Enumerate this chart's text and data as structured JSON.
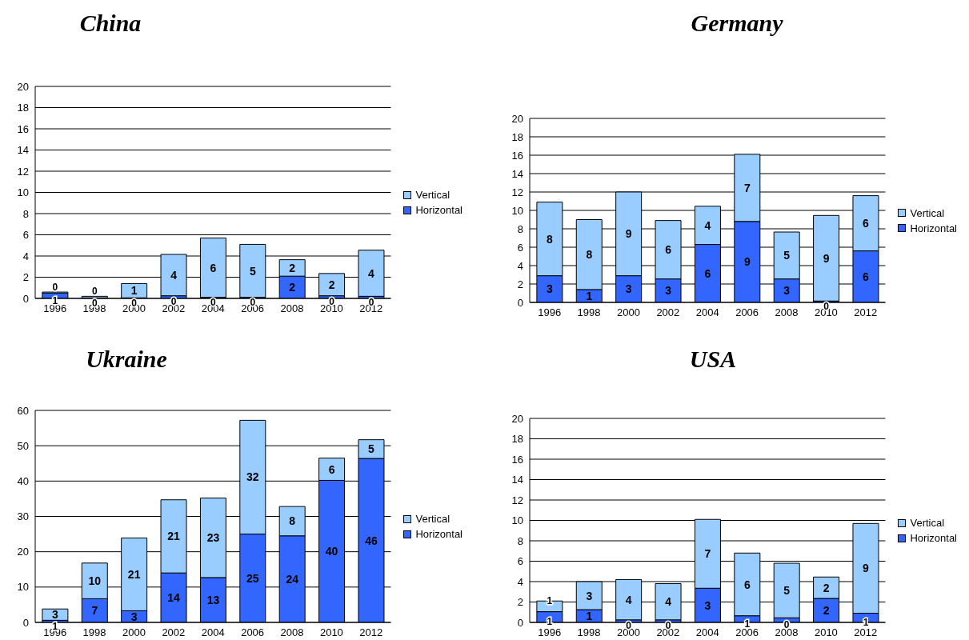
{
  "chart_data": [
    {
      "type": "bar",
      "title": "China",
      "categories": [
        "1996",
        "1998",
        "2000",
        "2002",
        "2004",
        "2006",
        "2008",
        "2010",
        "2012"
      ],
      "stacked": true,
      "ylim": [
        0,
        20
      ],
      "yticks": [
        0,
        2,
        4,
        6,
        8,
        10,
        12,
        14,
        16,
        18,
        20
      ],
      "grid": "y",
      "legend": "right",
      "series": [
        {
          "name": "Horizontal",
          "color": "#3366ff",
          "values": [
            0.5,
            0.05,
            0.05,
            0.25,
            0.1,
            0.1,
            2.1,
            0.25,
            0.2
          ],
          "value_labels": [
            "1",
            "0",
            "0",
            "0",
            "0",
            "0",
            "2",
            "0",
            "0"
          ]
        },
        {
          "name": "Vertical",
          "color": "#99ccff",
          "values": [
            0.1,
            0.15,
            1.35,
            3.9,
            5.6,
            5.0,
            1.55,
            2.1,
            4.35
          ],
          "value_labels": [
            "0",
            "0",
            "1",
            "4",
            "6",
            "5",
            "2",
            "2",
            "4"
          ]
        }
      ]
    },
    {
      "type": "bar",
      "title": "Germany",
      "categories": [
        "1996",
        "1998",
        "2000",
        "2002",
        "2004",
        "2006",
        "2008",
        "2010",
        "2012"
      ],
      "stacked": true,
      "ylim": [
        0,
        20
      ],
      "yticks": [
        0,
        2,
        4,
        6,
        8,
        10,
        12,
        14,
        16,
        18,
        20
      ],
      "grid": "y",
      "legend": "right",
      "series": [
        {
          "name": "Horizontal",
          "color": "#3366ff",
          "values": [
            2.9,
            1.4,
            2.9,
            2.55,
            6.3,
            8.8,
            2.55,
            0.15,
            5.6
          ],
          "value_labels": [
            "3",
            "1",
            "3",
            "3",
            "6",
            "9",
            "3",
            "0",
            "6"
          ]
        },
        {
          "name": "Vertical",
          "color": "#99ccff",
          "values": [
            8.0,
            7.6,
            9.1,
            6.35,
            4.15,
            7.3,
            5.1,
            9.3,
            6.0
          ],
          "value_labels": [
            "8",
            "8",
            "9",
            "6",
            "4",
            "7",
            "5",
            "9",
            "6"
          ]
        }
      ]
    },
    {
      "type": "bar",
      "title": "Ukraine",
      "categories": [
        "1996",
        "1998",
        "2000",
        "2002",
        "2004",
        "2006",
        "2008",
        "2010",
        "2012"
      ],
      "stacked": true,
      "ylim": [
        0,
        60
      ],
      "yticks": [
        0,
        10,
        20,
        30,
        40,
        50,
        60
      ],
      "grid": "y",
      "legend": "right",
      "series": [
        {
          "name": "Horizontal",
          "color": "#3366ff",
          "values": [
            0.6,
            6.7,
            3.3,
            14.0,
            12.7,
            25.0,
            24.5,
            40.2,
            46.4
          ],
          "value_labels": [
            "1",
            "7",
            "3",
            "14",
            "13",
            "25",
            "24",
            "40",
            "46"
          ]
        },
        {
          "name": "Vertical",
          "color": "#99ccff",
          "values": [
            3.2,
            10.1,
            20.6,
            20.7,
            22.5,
            32.2,
            8.3,
            6.3,
            5.3
          ],
          "value_labels": [
            "3",
            "10",
            "21",
            "21",
            "23",
            "32",
            "8",
            "6",
            "5"
          ]
        }
      ]
    },
    {
      "type": "bar",
      "title": "USA",
      "categories": [
        "1996",
        "1998",
        "2000",
        "2002",
        "2004",
        "2006",
        "2008",
        "2010",
        "2012"
      ],
      "stacked": true,
      "ylim": [
        0,
        20
      ],
      "yticks": [
        0,
        2,
        4,
        6,
        8,
        10,
        12,
        14,
        16,
        18,
        20
      ],
      "grid": "y",
      "legend": "right",
      "series": [
        {
          "name": "Horizontal",
          "color": "#3366ff",
          "values": [
            1.05,
            1.25,
            0.25,
            0.25,
            3.35,
            0.65,
            0.45,
            2.35,
            0.9
          ],
          "value_labels": [
            "1",
            "1",
            "0",
            "0",
            "3",
            "1",
            "0",
            "2",
            "1"
          ]
        },
        {
          "name": "Vertical",
          "color": "#99ccff",
          "values": [
            1.05,
            2.75,
            3.95,
            3.55,
            6.75,
            6.15,
            5.35,
            2.1,
            8.8
          ],
          "value_labels": [
            "1",
            "3",
            "4",
            "4",
            "7",
            "6",
            "5",
            "2",
            "9"
          ]
        }
      ]
    }
  ]
}
